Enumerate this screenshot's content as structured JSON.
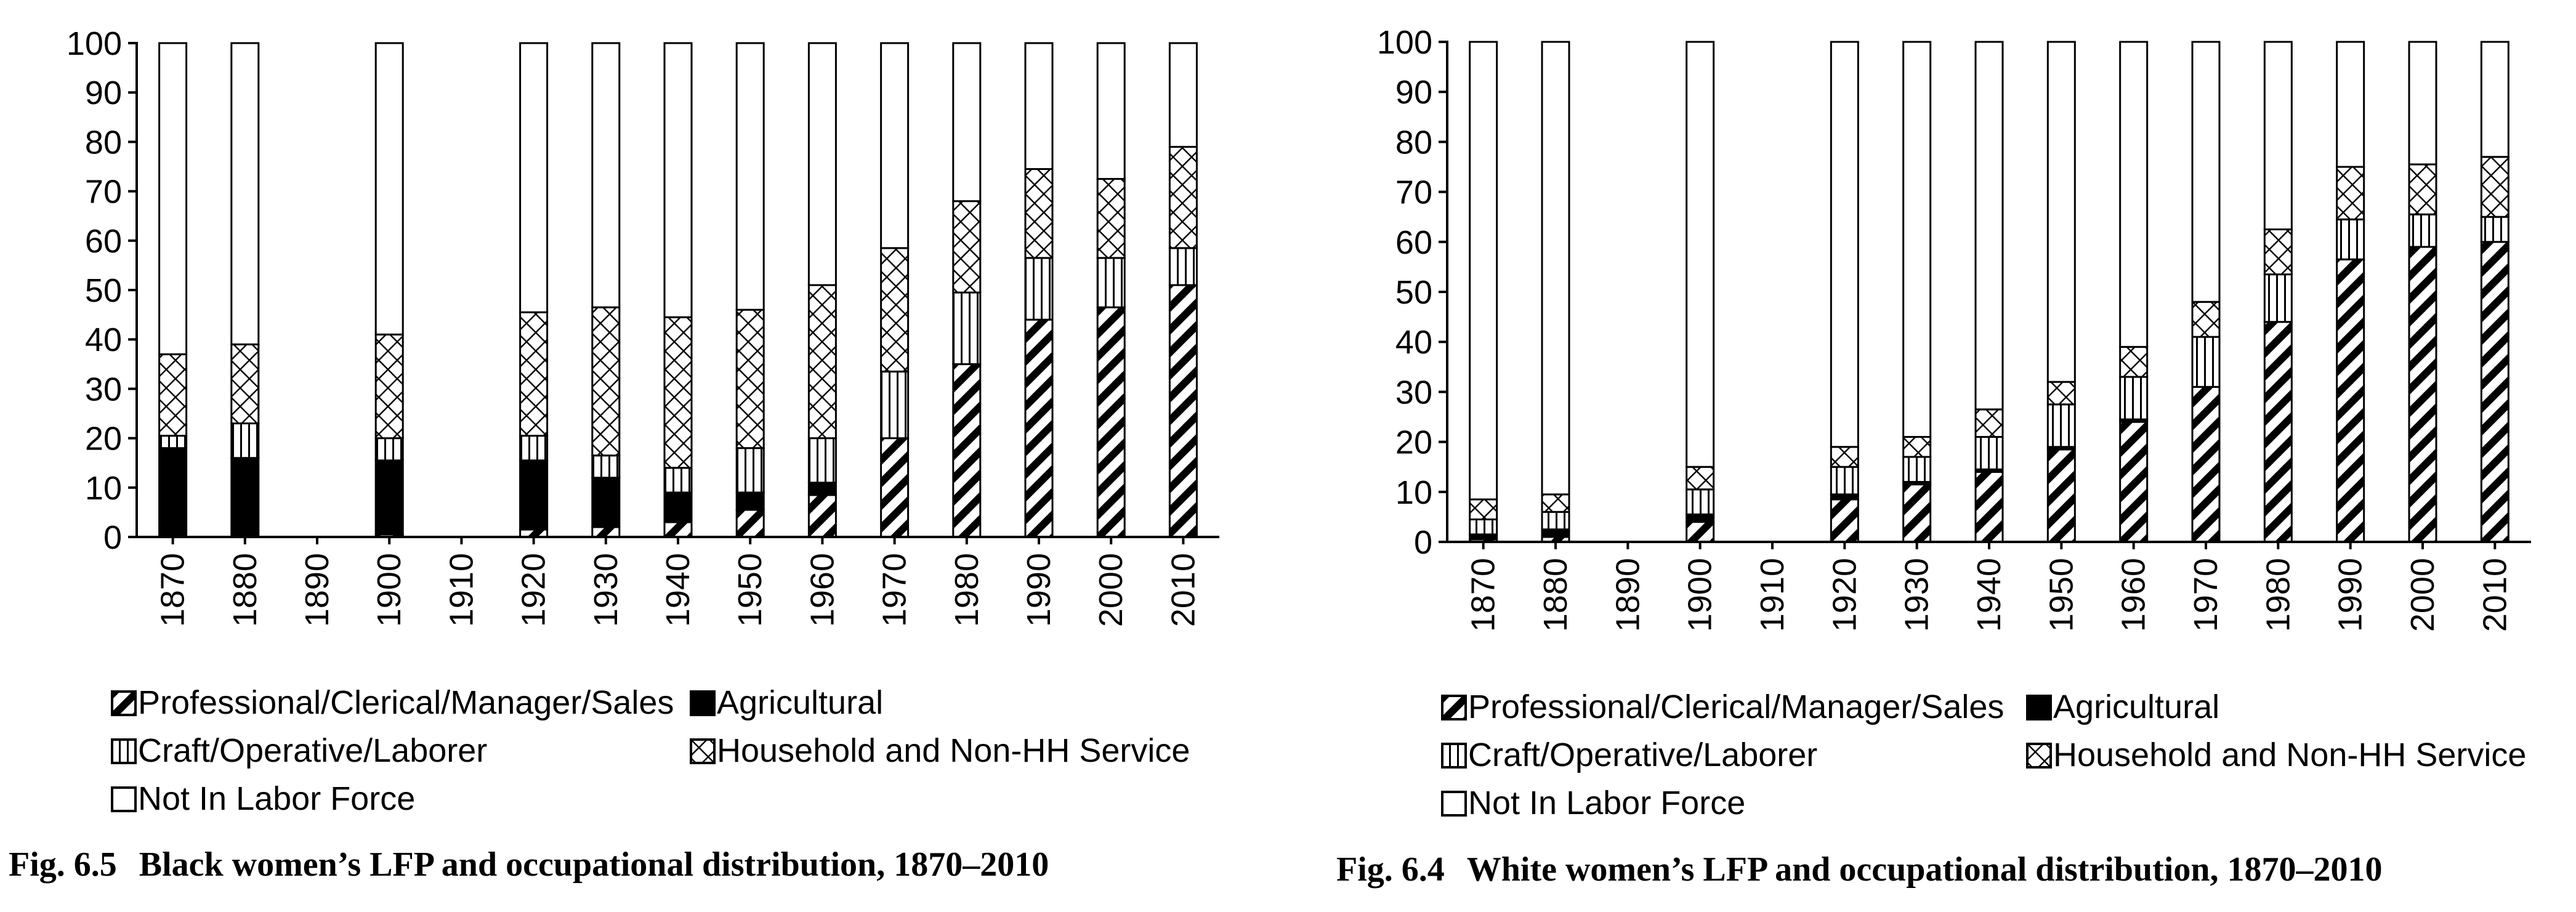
{
  "legend": {
    "professional": "Professional/Clerical/Manager/Sales",
    "agricultural": "Agricultural",
    "craft": "Craft/Operative/Laborer",
    "household": "Household and Non-HH Service",
    "nilf": "Not In Labor Force"
  },
  "captions": {
    "left": {
      "number": "Fig. 6.5",
      "text": "Black women’s LFP and occupational distribution, 1870–2010"
    },
    "right": {
      "number": "Fig. 6.4",
      "text": "White women’s LFP and occupational distribution, 1870–2010"
    }
  },
  "chart_data": [
    {
      "type": "bar",
      "stacked": true,
      "ylim": [
        0,
        100
      ],
      "yticks": [
        0,
        10,
        20,
        30,
        40,
        50,
        60,
        70,
        80,
        90,
        100
      ],
      "categories": [
        "1870",
        "1880",
        "1890",
        "1900",
        "1910",
        "1920",
        "1930",
        "1940",
        "1950",
        "1960",
        "1970",
        "1980",
        "1990",
        "2000",
        "2010"
      ],
      "series": [
        {
          "name": "Professional/Clerical/Manager/Sales",
          "pattern": "diagonal-hatch",
          "values": [
            0,
            0,
            0,
            0.5,
            0,
            1.5,
            2,
            3,
            5.5,
            8.5,
            20,
            35,
            44,
            46.5,
            51
          ]
        },
        {
          "name": "Agricultural",
          "pattern": "solid-black",
          "values": [
            18,
            16,
            0,
            15,
            0,
            14,
            10,
            6,
            3.5,
            2.5,
            0,
            0,
            0,
            0,
            0
          ]
        },
        {
          "name": "Craft/Operative/Laborer",
          "pattern": "vertical-lines",
          "values": [
            2.5,
            7,
            0,
            4.5,
            0,
            5,
            4.5,
            5,
            9,
            9,
            13.5,
            14.5,
            12.5,
            10,
            7.5
          ]
        },
        {
          "name": "Household and Non-HH Service",
          "pattern": "crosshatch",
          "values": [
            16.5,
            16,
            0,
            21,
            0,
            25,
            30,
            30.5,
            28,
            31,
            25,
            18.5,
            18,
            16,
            20.5
          ]
        },
        {
          "name": "Not In Labor Force",
          "pattern": "white",
          "values": [
            63,
            61,
            0,
            59,
            0,
            54.5,
            53.5,
            55.5,
            54,
            49,
            41.5,
            32,
            25.5,
            27.5,
            21
          ]
        }
      ]
    },
    {
      "type": "bar",
      "stacked": true,
      "ylim": [
        0,
        100
      ],
      "yticks": [
        0,
        10,
        20,
        30,
        40,
        50,
        60,
        70,
        80,
        90,
        100
      ],
      "categories": [
        "1870",
        "1880",
        "1890",
        "1900",
        "1910",
        "1920",
        "1930",
        "1940",
        "1950",
        "1960",
        "1970",
        "1980",
        "1990",
        "2000",
        "2010"
      ],
      "series": [
        {
          "name": "Professional/Clerical/Manager/Sales",
          "pattern": "diagonal-hatch",
          "values": [
            0.5,
            1,
            0,
            4,
            0,
            8.5,
            11.5,
            14,
            18.5,
            24,
            31,
            44,
            56.5,
            59,
            60
          ]
        },
        {
          "name": "Agricultural",
          "pattern": "solid-black",
          "values": [
            1,
            1.5,
            0,
            1.5,
            0,
            1,
            0.5,
            0.5,
            0.5,
            0.5,
            0,
            0,
            0,
            0,
            0
          ]
        },
        {
          "name": "Craft/Operative/Laborer",
          "pattern": "vertical-lines",
          "values": [
            3,
            3.5,
            0,
            5,
            0,
            5.5,
            5,
            6.5,
            8.5,
            8.5,
            10,
            9.5,
            8,
            6.5,
            5
          ]
        },
        {
          "name": "Household and Non-HH Service",
          "pattern": "crosshatch",
          "values": [
            4,
            3.5,
            0,
            4.5,
            0,
            4,
            4,
            5.5,
            4.5,
            6,
            7,
            9,
            10.5,
            10,
            12
          ]
        },
        {
          "name": "Not In Labor Force",
          "pattern": "white",
          "values": [
            91.5,
            90.5,
            0,
            85,
            0,
            81,
            79,
            73.5,
            68,
            61,
            52,
            37.5,
            25,
            24.5,
            23
          ]
        }
      ]
    }
  ]
}
